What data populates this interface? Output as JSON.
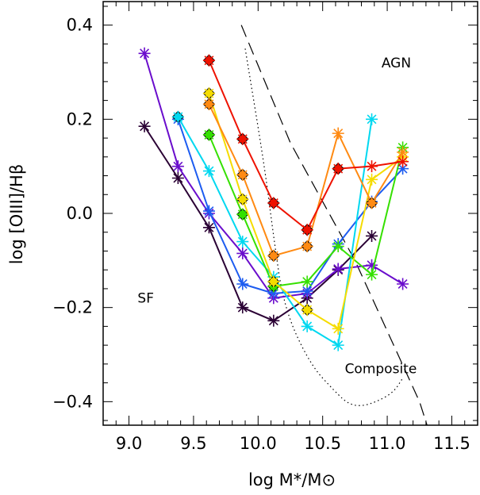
{
  "chart_data": {
    "type": "line",
    "xlabel": "log M*/M⊙",
    "ylabel": "log [OIII]/Hβ",
    "xlim": [
      8.8,
      11.7
    ],
    "ylim": [
      -0.45,
      0.45
    ],
    "xticks": [
      9.0,
      9.5,
      10.0,
      10.5,
      11.0,
      11.5
    ],
    "yticks": [
      -0.4,
      -0.2,
      0.0,
      0.2,
      0.4
    ],
    "xtick_labels": [
      "9.0",
      "9.5",
      "10.0",
      "10.5",
      "11.0",
      "11.5"
    ],
    "ytick_labels": [
      "−0.4",
      "−0.2",
      "0.0",
      "0.2",
      "0.4"
    ],
    "grid": false,
    "annotations": [
      {
        "text": "AGN",
        "x": 11.07,
        "y": 0.31
      },
      {
        "text": "SF",
        "x": 9.13,
        "y": -0.19
      },
      {
        "text": "Composite",
        "x": 10.95,
        "y": -0.34
      }
    ],
    "boundary_lines": [
      {
        "style": "dashed",
        "x": [
          9.87,
          10.25,
          10.75,
          11.25,
          11.32
        ],
        "y": [
          0.4,
          0.15,
          -0.1,
          -0.4,
          -0.46
        ]
      },
      {
        "style": "dotted",
        "x": [
          9.9,
          10.05,
          10.12,
          10.2,
          10.4,
          10.6,
          10.7,
          10.8,
          10.92,
          11.05,
          11.12
        ],
        "y": [
          0.35,
          0.1,
          -0.05,
          -0.2,
          -0.32,
          -0.38,
          -0.405,
          -0.41,
          -0.4,
          -0.38,
          -0.35
        ]
      }
    ],
    "series": [
      {
        "color": "#2a0034",
        "x": [
          9.12,
          9.38,
          9.62,
          9.88,
          10.12,
          10.38,
          10.62,
          10.88
        ],
        "y": [
          0.185,
          0.075,
          -0.03,
          -0.2,
          -0.228,
          -0.18,
          -0.12,
          -0.048
        ],
        "diamonds": []
      },
      {
        "color": "#6a0dcc",
        "x": [
          9.12,
          9.38,
          9.62,
          9.88,
          10.12,
          10.38,
          10.62,
          10.88,
          11.12
        ],
        "y": [
          0.34,
          0.1,
          0.0,
          -0.085,
          -0.18,
          -0.17,
          -0.118,
          -0.11,
          -0.15
        ],
        "diamonds": []
      },
      {
        "color": "#1d5cf0",
        "x": [
          9.38,
          9.62,
          9.88,
          10.12,
          10.38,
          10.62,
          10.88,
          11.12
        ],
        "y": [
          0.2,
          0.005,
          -0.15,
          -0.17,
          -0.165,
          -0.065,
          0.025,
          0.095
        ],
        "diamonds": []
      },
      {
        "color": "#00d8f0",
        "x": [
          9.38,
          9.62,
          9.88,
          10.12,
          10.38,
          10.62,
          10.88
        ],
        "y": [
          0.205,
          0.09,
          -0.06,
          -0.135,
          -0.24,
          -0.28,
          0.2
        ],
        "diamonds": [
          0
        ]
      },
      {
        "color": "#35e000",
        "x": [
          9.62,
          9.88,
          10.12,
          10.38,
          10.62,
          10.88,
          11.12
        ],
        "y": [
          0.167,
          -0.002,
          -0.155,
          -0.145,
          -0.07,
          -0.13,
          0.14
        ],
        "diamonds": [
          0,
          1,
          2
        ]
      },
      {
        "color": "#f5dc00",
        "x": [
          9.62,
          9.88,
          10.12,
          10.38,
          10.62,
          10.88,
          11.12
        ],
        "y": [
          0.255,
          0.03,
          -0.145,
          -0.205,
          -0.245,
          0.072,
          0.12
        ],
        "diamonds": [
          0,
          1,
          2,
          3
        ]
      },
      {
        "color": "#ff8a12",
        "x": [
          9.62,
          9.88,
          10.12,
          10.38,
          10.62,
          10.88,
          11.12
        ],
        "y": [
          0.232,
          0.082,
          -0.09,
          -0.07,
          0.17,
          0.022,
          0.13
        ],
        "diamonds": [
          0,
          1,
          2,
          3,
          5
        ]
      },
      {
        "color": "#ee1200",
        "x": [
          9.62,
          9.88,
          10.12,
          10.38,
          10.62,
          10.88,
          11.12
        ],
        "y": [
          0.325,
          0.158,
          0.022,
          -0.035,
          0.095,
          0.1,
          0.11
        ],
        "diamonds": [
          0,
          1,
          2,
          3,
          4
        ]
      }
    ]
  }
}
